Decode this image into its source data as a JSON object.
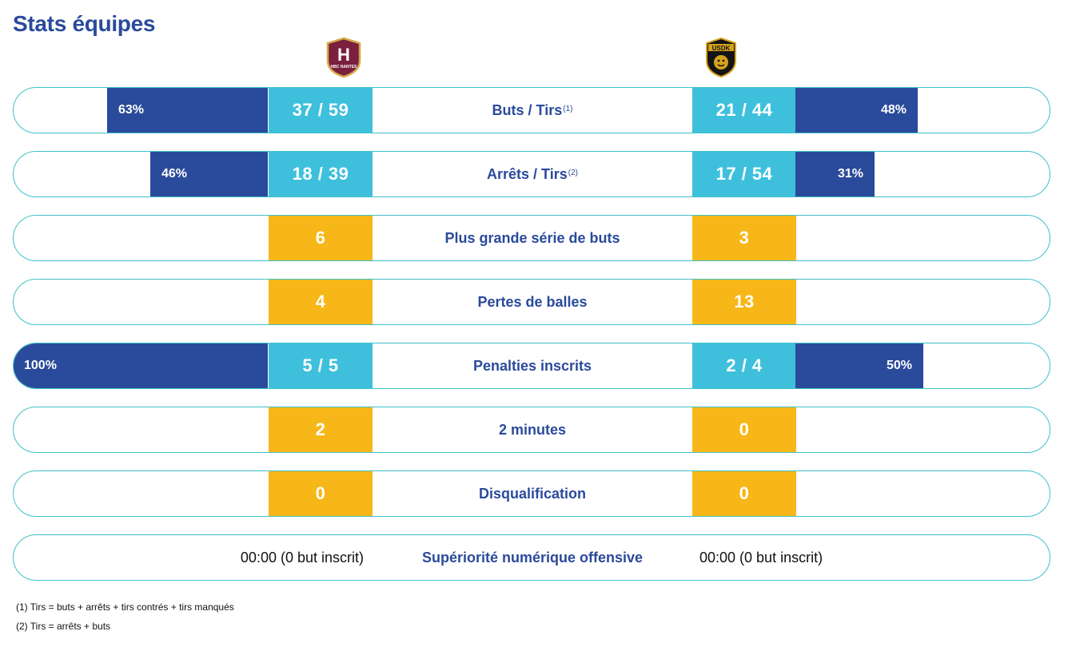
{
  "page": {
    "title": "Stats équipes"
  },
  "teams": {
    "home": {
      "name": "HBC Nantes",
      "logo_text": "H",
      "logo_sub": "HBC NANTES"
    },
    "away": {
      "name": "USDK",
      "logo_text": "USDK"
    }
  },
  "colors": {
    "primary": "#2a4a9b",
    "cyan": "#3ec0dd",
    "yellow": "#f7b718",
    "border": "#3fc1c9"
  },
  "rows": [
    {
      "label": "Buts / Tirs",
      "note": "(1)",
      "home": "37 / 59",
      "away": "21 / 44",
      "style": "cyan",
      "home_pct_label": "63%",
      "away_pct_label": "48%",
      "home_pct": 63,
      "away_pct": 48
    },
    {
      "label": "Arrêts / Tirs",
      "note": "(2)",
      "home": "18 / 39",
      "away": "17 / 54",
      "style": "cyan",
      "home_pct_label": "46%",
      "away_pct_label": "31%",
      "home_pct": 46,
      "away_pct": 31
    },
    {
      "label": "Plus grande série de buts",
      "home": "6",
      "away": "3",
      "style": "yellow"
    },
    {
      "label": "Pertes de balles",
      "home": "4",
      "away": "13",
      "style": "yellow"
    },
    {
      "label": "Penalties inscrits",
      "home": "5 / 5",
      "away": "2 / 4",
      "style": "cyan",
      "home_pct_label": "100%",
      "away_pct_label": "50%",
      "home_pct": 100,
      "away_pct": 50
    },
    {
      "label": "2 minutes",
      "home": "2",
      "away": "0",
      "style": "yellow"
    },
    {
      "label": "Disqualification",
      "home": "0",
      "away": "0",
      "style": "yellow"
    },
    {
      "label": "Supériorité numérique offensive",
      "home": "00:00 (0 but inscrit)",
      "away": "00:00 (0 but inscrit)",
      "style": "plain"
    }
  ],
  "footnotes": [
    "(1) Tirs = buts + arrêts + tirs contrés + tirs manqués",
    "(2) Tirs = arrêts + buts"
  ]
}
